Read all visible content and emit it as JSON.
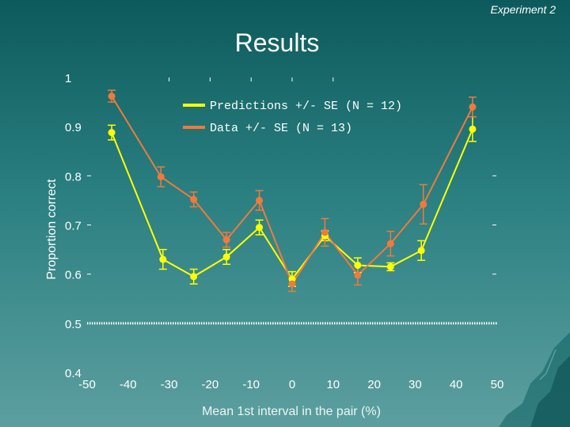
{
  "header": {
    "corner_label": "Experiment 2",
    "title": "Results"
  },
  "colors": {
    "predictions": "#ffff00",
    "data": "#f07a3c",
    "axis_text": "#ffffff",
    "dotted_line": "#ffffff"
  },
  "chart_data": {
    "type": "line",
    "title": "Results",
    "xlabel": "Mean 1st interval in the pair (%)",
    "ylabel": "Proportion correct",
    "xlim": [
      -50,
      50
    ],
    "ylim": [
      0.4,
      1
    ],
    "x_ticks": [
      -50,
      -40,
      -30,
      -20,
      -10,
      0,
      10,
      20,
      30,
      40,
      50
    ],
    "x_tick_labels": [
      "-50",
      "-40",
      "-30",
      "-20",
      "-10",
      "0",
      "10",
      "20",
      "30",
      "40",
      "50"
    ],
    "y_ticks": [
      0.4,
      0.5,
      0.6,
      0.7,
      0.8,
      0.9,
      1
    ],
    "y_tick_labels": [
      "0.4",
      "0.5",
      "0.6",
      "0.7",
      "0.8",
      "0.9",
      "1"
    ],
    "reference_line": 0.5,
    "legend_position": "top-center",
    "series": [
      {
        "name": "Predictions +/- SE (N = 12)",
        "color": "#ffff00",
        "x": [
          -44,
          -31.5,
          -24,
          -16,
          -8,
          0,
          8,
          16,
          24,
          31.5,
          44
        ],
        "y": [
          0.888,
          0.63,
          0.595,
          0.635,
          0.695,
          0.59,
          0.678,
          0.618,
          0.615,
          0.648,
          0.895
        ],
        "se": [
          0.015,
          0.02,
          0.015,
          0.015,
          0.015,
          0.015,
          0.01,
          0.015,
          0.008,
          0.02,
          0.025
        ]
      },
      {
        "name": "Data +/- SE (N = 13)",
        "color": "#f07a3c",
        "x": [
          -44,
          -32,
          -24,
          -16,
          -8,
          0,
          8,
          16,
          24,
          32,
          44
        ],
        "y": [
          0.962,
          0.798,
          0.752,
          0.67,
          0.75,
          0.58,
          0.685,
          0.598,
          0.662,
          0.742,
          0.94
        ],
        "se": [
          0.012,
          0.02,
          0.015,
          0.015,
          0.02,
          0.015,
          0.028,
          0.02,
          0.025,
          0.04,
          0.02
        ]
      }
    ]
  }
}
